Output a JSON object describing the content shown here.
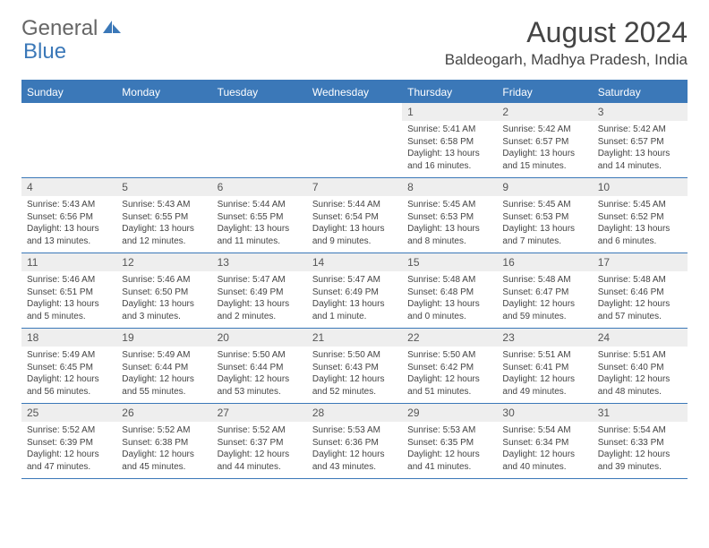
{
  "logo": {
    "general": "General",
    "blue": "Blue"
  },
  "title": "August 2024",
  "location": "Baldeogarh, Madhya Pradesh, India",
  "colors": {
    "accent": "#3b78b8",
    "header_bg": "#3b78b8",
    "daynum_bg": "#eeeeee",
    "text": "#444444"
  },
  "day_names": [
    "Sunday",
    "Monday",
    "Tuesday",
    "Wednesday",
    "Thursday",
    "Friday",
    "Saturday"
  ],
  "weeks": [
    [
      null,
      null,
      null,
      null,
      {
        "n": "1",
        "sr": "5:41 AM",
        "ss": "6:58 PM",
        "dl": "13 hours and 16 minutes."
      },
      {
        "n": "2",
        "sr": "5:42 AM",
        "ss": "6:57 PM",
        "dl": "13 hours and 15 minutes."
      },
      {
        "n": "3",
        "sr": "5:42 AM",
        "ss": "6:57 PM",
        "dl": "13 hours and 14 minutes."
      }
    ],
    [
      {
        "n": "4",
        "sr": "5:43 AM",
        "ss": "6:56 PM",
        "dl": "13 hours and 13 minutes."
      },
      {
        "n": "5",
        "sr": "5:43 AM",
        "ss": "6:55 PM",
        "dl": "13 hours and 12 minutes."
      },
      {
        "n": "6",
        "sr": "5:44 AM",
        "ss": "6:55 PM",
        "dl": "13 hours and 11 minutes."
      },
      {
        "n": "7",
        "sr": "5:44 AM",
        "ss": "6:54 PM",
        "dl": "13 hours and 9 minutes."
      },
      {
        "n": "8",
        "sr": "5:45 AM",
        "ss": "6:53 PM",
        "dl": "13 hours and 8 minutes."
      },
      {
        "n": "9",
        "sr": "5:45 AM",
        "ss": "6:53 PM",
        "dl": "13 hours and 7 minutes."
      },
      {
        "n": "10",
        "sr": "5:45 AM",
        "ss": "6:52 PM",
        "dl": "13 hours and 6 minutes."
      }
    ],
    [
      {
        "n": "11",
        "sr": "5:46 AM",
        "ss": "6:51 PM",
        "dl": "13 hours and 5 minutes."
      },
      {
        "n": "12",
        "sr": "5:46 AM",
        "ss": "6:50 PM",
        "dl": "13 hours and 3 minutes."
      },
      {
        "n": "13",
        "sr": "5:47 AM",
        "ss": "6:49 PM",
        "dl": "13 hours and 2 minutes."
      },
      {
        "n": "14",
        "sr": "5:47 AM",
        "ss": "6:49 PM",
        "dl": "13 hours and 1 minute."
      },
      {
        "n": "15",
        "sr": "5:48 AM",
        "ss": "6:48 PM",
        "dl": "13 hours and 0 minutes."
      },
      {
        "n": "16",
        "sr": "5:48 AM",
        "ss": "6:47 PM",
        "dl": "12 hours and 59 minutes."
      },
      {
        "n": "17",
        "sr": "5:48 AM",
        "ss": "6:46 PM",
        "dl": "12 hours and 57 minutes."
      }
    ],
    [
      {
        "n": "18",
        "sr": "5:49 AM",
        "ss": "6:45 PM",
        "dl": "12 hours and 56 minutes."
      },
      {
        "n": "19",
        "sr": "5:49 AM",
        "ss": "6:44 PM",
        "dl": "12 hours and 55 minutes."
      },
      {
        "n": "20",
        "sr": "5:50 AM",
        "ss": "6:44 PM",
        "dl": "12 hours and 53 minutes."
      },
      {
        "n": "21",
        "sr": "5:50 AM",
        "ss": "6:43 PM",
        "dl": "12 hours and 52 minutes."
      },
      {
        "n": "22",
        "sr": "5:50 AM",
        "ss": "6:42 PM",
        "dl": "12 hours and 51 minutes."
      },
      {
        "n": "23",
        "sr": "5:51 AM",
        "ss": "6:41 PM",
        "dl": "12 hours and 49 minutes."
      },
      {
        "n": "24",
        "sr": "5:51 AM",
        "ss": "6:40 PM",
        "dl": "12 hours and 48 minutes."
      }
    ],
    [
      {
        "n": "25",
        "sr": "5:52 AM",
        "ss": "6:39 PM",
        "dl": "12 hours and 47 minutes."
      },
      {
        "n": "26",
        "sr": "5:52 AM",
        "ss": "6:38 PM",
        "dl": "12 hours and 45 minutes."
      },
      {
        "n": "27",
        "sr": "5:52 AM",
        "ss": "6:37 PM",
        "dl": "12 hours and 44 minutes."
      },
      {
        "n": "28",
        "sr": "5:53 AM",
        "ss": "6:36 PM",
        "dl": "12 hours and 43 minutes."
      },
      {
        "n": "29",
        "sr": "5:53 AM",
        "ss": "6:35 PM",
        "dl": "12 hours and 41 minutes."
      },
      {
        "n": "30",
        "sr": "5:54 AM",
        "ss": "6:34 PM",
        "dl": "12 hours and 40 minutes."
      },
      {
        "n": "31",
        "sr": "5:54 AM",
        "ss": "6:33 PM",
        "dl": "12 hours and 39 minutes."
      }
    ]
  ],
  "labels": {
    "sunrise": "Sunrise: ",
    "sunset": "Sunset: ",
    "daylight": "Daylight: "
  }
}
